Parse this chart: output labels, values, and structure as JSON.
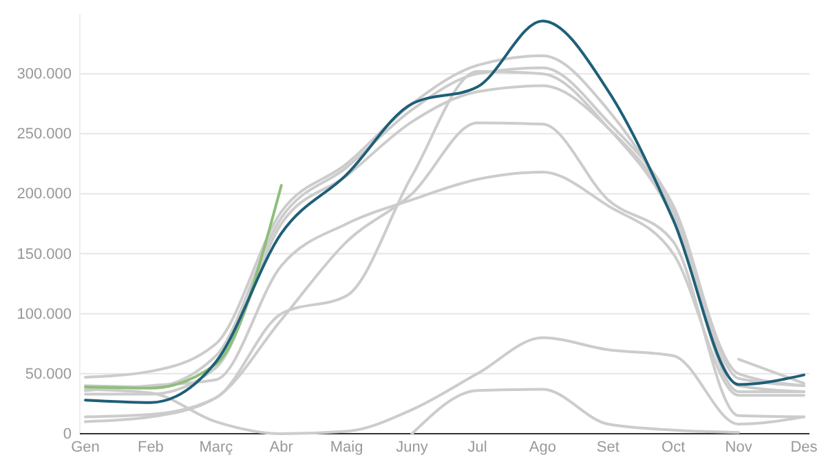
{
  "chart_data": {
    "type": "line",
    "categories": [
      "Gen",
      "Feb",
      "Març",
      "Abr",
      "Maig",
      "Juny",
      "Jul",
      "Ago",
      "Set",
      "Oct",
      "Nov",
      "Des"
    ],
    "ylim": [
      0,
      350000
    ],
    "yticks": [
      {
        "value": 0,
        "label": "0"
      },
      {
        "value": 50000,
        "label": "50.000"
      },
      {
        "value": 100000,
        "label": "100.000"
      },
      {
        "value": 150000,
        "label": "150.000"
      },
      {
        "value": 200000,
        "label": "200.000"
      },
      {
        "value": 250000,
        "label": "250.000"
      },
      {
        "value": 300000,
        "label": "300.000"
      }
    ],
    "grid": "y",
    "marker": "none",
    "line_style": "solid",
    "series": [
      {
        "color": "#cccccc",
        "values": [
          47000,
          52000,
          75000,
          185000,
          225000,
          275000,
          307000,
          315000,
          270000,
          185000,
          50000,
          40000
        ]
      },
      {
        "color": "#cccccc",
        "values": [
          40000,
          39000,
          65000,
          180000,
          222000,
          270000,
          300000,
          305000,
          260000,
          190000,
          46000,
          40000
        ]
      },
      {
        "color": "#cccccc",
        "values": [
          33000,
          33000,
          55000,
          175000,
          215000,
          260000,
          285000,
          290000,
          255000,
          185000,
          40000,
          35000
        ]
      },
      {
        "color": "#cccccc",
        "values": [
          14000,
          16000,
          30000,
          100000,
          115000,
          215000,
          302000,
          300000,
          255000,
          180000,
          35000,
          35000
        ]
      },
      {
        "color": "#cccccc",
        "values": [
          10000,
          14000,
          30000,
          95000,
          160000,
          200000,
          259000,
          258000,
          195000,
          160000,
          15000,
          14000
        ]
      },
      {
        "color": "#cccccc",
        "values": [
          36000,
          40000,
          45000,
          140000,
          175000,
          195000,
          212000,
          218000,
          190000,
          150000,
          32000,
          32000
        ]
      },
      {
        "color": "#cccccc",
        "values": [
          37000,
          34000,
          10000,
          0,
          2000,
          20000,
          50000,
          80000,
          70000,
          65000,
          8000,
          14000
        ]
      },
      {
        "color": "#cccccc",
        "values": [
          null,
          null,
          null,
          null,
          null,
          0,
          36000,
          37000,
          8000,
          3000,
          1000,
          null
        ]
      },
      {
        "color": "#cccccc",
        "values": [
          null,
          null,
          null,
          null,
          null,
          null,
          null,
          null,
          null,
          null,
          62000,
          42000
        ]
      },
      {
        "color": "#8dbf7a",
        "values": [
          39000,
          38000,
          58000,
          207000,
          null,
          null,
          null,
          null,
          null,
          null,
          null,
          null
        ]
      },
      {
        "color": "#1f5f78",
        "values": [
          28000,
          26000,
          60000,
          167000,
          216000,
          275000,
          289000,
          344000,
          286000,
          178000,
          41000,
          49000
        ]
      }
    ]
  }
}
